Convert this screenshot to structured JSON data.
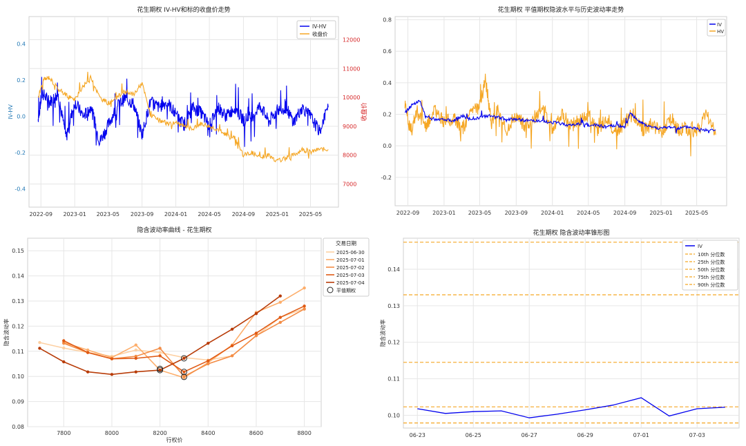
{
  "chart_data": [
    {
      "type": "line",
      "title": "花生期权 IV-HV和标的收盘价走势",
      "ylabel": "IV-HV",
      "ylabel_right": "收盘价",
      "x_ticks": [
        "2022-09",
        "2023-01",
        "2023-05",
        "2023-09",
        "2024-01",
        "2024-05",
        "2024-09",
        "2025-01",
        "2025-05"
      ],
      "ylim": [
        -0.5,
        0.55
      ],
      "ylim_right": [
        6200,
        12800
      ],
      "y_ticks": [
        -0.4,
        -0.2,
        0.0,
        0.2,
        0.4
      ],
      "y_ticks_right": [
        7000,
        8000,
        9000,
        10000,
        11000,
        12000
      ],
      "grid": true,
      "legend": "top-right",
      "series": [
        {
          "name": "IV-HV",
          "color": "#0000ee",
          "axis": "left",
          "x": [
            "2022-08-22",
            "2022-09-05",
            "2022-10-01",
            "2022-11-01",
            "2022-12-01",
            "2023-01-01",
            "2023-02-01",
            "2023-03-01",
            "2023-04-01",
            "2023-05-01",
            "2023-06-01",
            "2023-07-01",
            "2023-08-01",
            "2023-09-01",
            "2023-10-01",
            "2023-11-01",
            "2023-12-01",
            "2024-01-01",
            "2024-02-01",
            "2024-03-01",
            "2024-04-01",
            "2024-05-01",
            "2024-06-01",
            "2024-07-01",
            "2024-08-01",
            "2024-09-01",
            "2024-10-01",
            "2024-11-01",
            "2024-12-01",
            "2025-01-01",
            "2025-02-01",
            "2025-03-01",
            "2025-04-01",
            "2025-05-01",
            "2025-06-01",
            "2025-07-04"
          ],
          "y": [
            -0.02,
            0.13,
            0.08,
            0.12,
            -0.11,
            0.08,
            0.0,
            0.05,
            -0.14,
            -0.05,
            0.05,
            0.1,
            0.07,
            -0.1,
            0.08,
            0.05,
            0.08,
            0.01,
            -0.05,
            0.05,
            0.02,
            -0.05,
            0.05,
            0.0,
            0.05,
            -0.02,
            0.0,
            0.06,
            -0.03,
            0.03,
            0.05,
            -0.03,
            0.05,
            0.0,
            -0.08,
            0.05
          ]
        },
        {
          "name": "收盘价",
          "color": "#f5a623",
          "axis": "right",
          "x": [
            "2022-08-22",
            "2022-09-10",
            "2022-10-01",
            "2022-11-01",
            "2022-12-01",
            "2023-01-01",
            "2023-02-01",
            "2023-03-01",
            "2023-04-01",
            "2023-05-01",
            "2023-06-01",
            "2023-07-01",
            "2023-08-01",
            "2023-09-01",
            "2023-10-01",
            "2023-11-01",
            "2023-12-01",
            "2024-01-01",
            "2024-02-01",
            "2024-03-01",
            "2024-04-01",
            "2024-05-01",
            "2024-06-01",
            "2024-07-01",
            "2024-08-01",
            "2024-09-01",
            "2024-10-01",
            "2024-11-01",
            "2024-12-01",
            "2025-01-01",
            "2025-02-01",
            "2025-03-01",
            "2025-04-01",
            "2025-05-01",
            "2025-06-01",
            "2025-07-04"
          ],
          "y": [
            10000,
            10600,
            10700,
            10300,
            10100,
            9900,
            10400,
            10700,
            10000,
            9800,
            10000,
            10200,
            10100,
            10500,
            9400,
            9200,
            9100,
            9100,
            9000,
            8900,
            9100,
            9000,
            8900,
            8700,
            8600,
            8000,
            8100,
            7900,
            8000,
            7800,
            7900,
            8000,
            8200,
            8100,
            8200,
            8200
          ]
        }
      ]
    },
    {
      "type": "line",
      "title": "花生期权 平值期权隐波水平与历史波动率走势",
      "x_ticks": [
        "2022-09",
        "2023-01",
        "2023-05",
        "2023-09",
        "2024-01",
        "2024-05",
        "2024-09",
        "2025-01",
        "2025-05"
      ],
      "ylim": [
        -0.38,
        0.82
      ],
      "y_ticks": [
        -0.2,
        0.0,
        0.2,
        0.4,
        0.6,
        0.8
      ],
      "grid": true,
      "legend": "top-right",
      "series": [
        {
          "name": "IV",
          "color": "#0000ee",
          "x": [
            "2022-08-22",
            "2022-09-15",
            "2022-10-10",
            "2022-11-01",
            "2022-12-01",
            "2023-01-01",
            "2023-02-01",
            "2023-03-01",
            "2023-04-01",
            "2023-05-01",
            "2023-06-01",
            "2023-07-01",
            "2023-08-01",
            "2023-09-01",
            "2023-10-01",
            "2023-11-01",
            "2023-12-01",
            "2024-01-01",
            "2024-02-01",
            "2024-03-01",
            "2024-04-01",
            "2024-05-01",
            "2024-06-01",
            "2024-07-01",
            "2024-08-01",
            "2024-09-01",
            "2024-09-20",
            "2024-10-15",
            "2024-11-01",
            "2024-12-01",
            "2025-01-01",
            "2025-02-01",
            "2025-03-01",
            "2025-04-01",
            "2025-05-01",
            "2025-06-01",
            "2025-07-04"
          ],
          "y": [
            0.21,
            0.26,
            0.29,
            0.18,
            0.17,
            0.17,
            0.16,
            0.19,
            0.17,
            0.18,
            0.19,
            0.18,
            0.17,
            0.17,
            0.16,
            0.16,
            0.15,
            0.15,
            0.14,
            0.13,
            0.14,
            0.13,
            0.13,
            0.12,
            0.13,
            0.12,
            0.21,
            0.16,
            0.14,
            0.12,
            0.11,
            0.12,
            0.11,
            0.12,
            0.11,
            0.1,
            0.1
          ]
        },
        {
          "name": "HV",
          "color": "#f5a623",
          "x": [
            "2022-08-22",
            "2022-09-10",
            "2022-10-01",
            "2022-11-01",
            "2022-12-01",
            "2023-01-01",
            "2023-02-01",
            "2023-03-01",
            "2023-04-01",
            "2023-05-01",
            "2023-05-20",
            "2023-06-10",
            "2023-07-01",
            "2023-08-01",
            "2023-09-01",
            "2023-10-01",
            "2023-11-01",
            "2023-12-01",
            "2024-01-01",
            "2024-02-01",
            "2024-03-01",
            "2024-04-01",
            "2024-05-01",
            "2024-06-01",
            "2024-07-01",
            "2024-08-01",
            "2024-09-01",
            "2024-10-01",
            "2024-11-01",
            "2024-12-01",
            "2025-01-01",
            "2025-02-01",
            "2025-03-01",
            "2025-04-01",
            "2025-05-01",
            "2025-06-01",
            "2025-07-04"
          ],
          "y": [
            0.25,
            0.1,
            0.22,
            0.12,
            0.22,
            0.15,
            0.18,
            0.1,
            0.2,
            0.25,
            0.42,
            0.15,
            0.22,
            0.1,
            0.2,
            0.12,
            0.18,
            0.22,
            0.1,
            0.2,
            0.12,
            0.16,
            0.2,
            0.1,
            0.18,
            0.08,
            0.15,
            0.2,
            0.1,
            0.14,
            0.08,
            0.16,
            0.1,
            0.12,
            0.08,
            0.2,
            0.07
          ]
        }
      ]
    },
    {
      "type": "line",
      "title": "隐含波动率曲线 - 花生期权",
      "xlabel": "行权价",
      "ylabel": "隐含波动率",
      "xlim": [
        7650,
        8870
      ],
      "ylim": [
        0.08,
        0.155
      ],
      "x_ticks": [
        7800,
        8000,
        8200,
        8400,
        8600,
        8800
      ],
      "y_ticks": [
        0.08,
        0.09,
        0.1,
        0.11,
        0.12,
        0.13,
        0.14,
        0.15
      ],
      "grid": true,
      "legend_title": "交易日期",
      "legend": "top-right outside",
      "atm_label": "平值期权",
      "series": [
        {
          "name": "2025-06-30",
          "color": "#fdd0a2",
          "x": [
            7700,
            7800,
            7900,
            8000,
            8100,
            8200,
            8300,
            8400,
            8500,
            8600,
            8700,
            8800
          ],
          "y": [
            0.1135,
            0.1113,
            0.1095,
            0.108,
            0.1105,
            0.1095,
            0.1075,
            0.1065,
            0.1082,
            0.1162,
            0.1235,
            0.127
          ]
        },
        {
          "name": "2025-07-01",
          "color": "#fdae6b",
          "x": [
            7800,
            7900,
            8000,
            8100,
            8200,
            8300,
            8400,
            8500,
            8600,
            8700,
            8800
          ],
          "y": [
            0.1135,
            0.1105,
            0.1075,
            0.1125,
            0.1025,
            0.0995,
            0.1055,
            0.1125,
            0.1255,
            0.1295,
            0.1352
          ]
        },
        {
          "name": "2025-07-02",
          "color": "#f38c45",
          "x": [
            7800,
            7900,
            8000,
            8100,
            8200,
            8300,
            8400,
            8500,
            8600,
            8700,
            8800
          ],
          "y": [
            0.1132,
            0.1095,
            0.107,
            0.108,
            0.1112,
            0.1,
            0.105,
            0.1082,
            0.1162,
            0.1215,
            0.1268
          ]
        },
        {
          "name": "2025-07-03",
          "color": "#e05a14",
          "x": [
            7800,
            7900,
            8000,
            8100,
            8200,
            8300,
            8400,
            8500,
            8600,
            8700,
            8800
          ],
          "y": [
            0.1142,
            0.1095,
            0.107,
            0.1072,
            0.1082,
            0.1018,
            0.1062,
            0.1122,
            0.1172,
            0.1235,
            0.128
          ]
        },
        {
          "name": "2025-07-04",
          "color": "#b83c08",
          "x": [
            7700,
            7800,
            7900,
            8000,
            8100,
            8200,
            8300,
            8400,
            8500,
            8600,
            8700
          ],
          "y": [
            0.1112,
            0.1058,
            0.1018,
            0.1008,
            0.1018,
            0.1025,
            0.1072,
            0.1132,
            0.1188,
            0.125,
            0.132
          ]
        }
      ],
      "atm_points": [
        [
          8200,
          0.1025
        ],
        [
          8200,
          0.103
        ],
        [
          8300,
          0.0998
        ],
        [
          8300,
          0.1018
        ],
        [
          8300,
          0.1072
        ]
      ]
    },
    {
      "type": "line",
      "title": "花生期权 隐含波动率锥形图",
      "ylabel": "隐含波动率",
      "x": [
        "06-23",
        "06-24",
        "06-25",
        "06-26",
        "06-27",
        "06-28",
        "06-29",
        "06-30",
        "07-01",
        "07-02",
        "07-03",
        "07-04"
      ],
      "x_ticks": [
        "06-23",
        "06-25",
        "06-27",
        "06-29",
        "07-01",
        "07-03"
      ],
      "ylim": [
        0.0965,
        0.1485
      ],
      "y_ticks": [
        0.1,
        0.11,
        0.12,
        0.13,
        0.14
      ],
      "grid": true,
      "legend": "top-right",
      "series": [
        {
          "name": "IV",
          "color": "#0000ee",
          "values": [
            0.1018,
            0.1005,
            0.101,
            0.1012,
            0.0993,
            0.1003,
            0.1015,
            0.1028,
            0.1048,
            0.0998,
            0.1018,
            0.1022
          ]
        }
      ],
      "hlines": [
        {
          "name": "10th 分位数",
          "value": 0.0979,
          "color": "#f5a623"
        },
        {
          "name": "25th 分位数",
          "value": 0.1023,
          "color": "#f5a623"
        },
        {
          "name": "50th 分位数",
          "value": 0.1145,
          "color": "#f5a623"
        },
        {
          "name": "75th 分位数",
          "value": 0.133,
          "color": "#f5a623"
        },
        {
          "name": "90th 分位数",
          "value": 0.1474,
          "color": "#f5a623"
        }
      ]
    }
  ]
}
